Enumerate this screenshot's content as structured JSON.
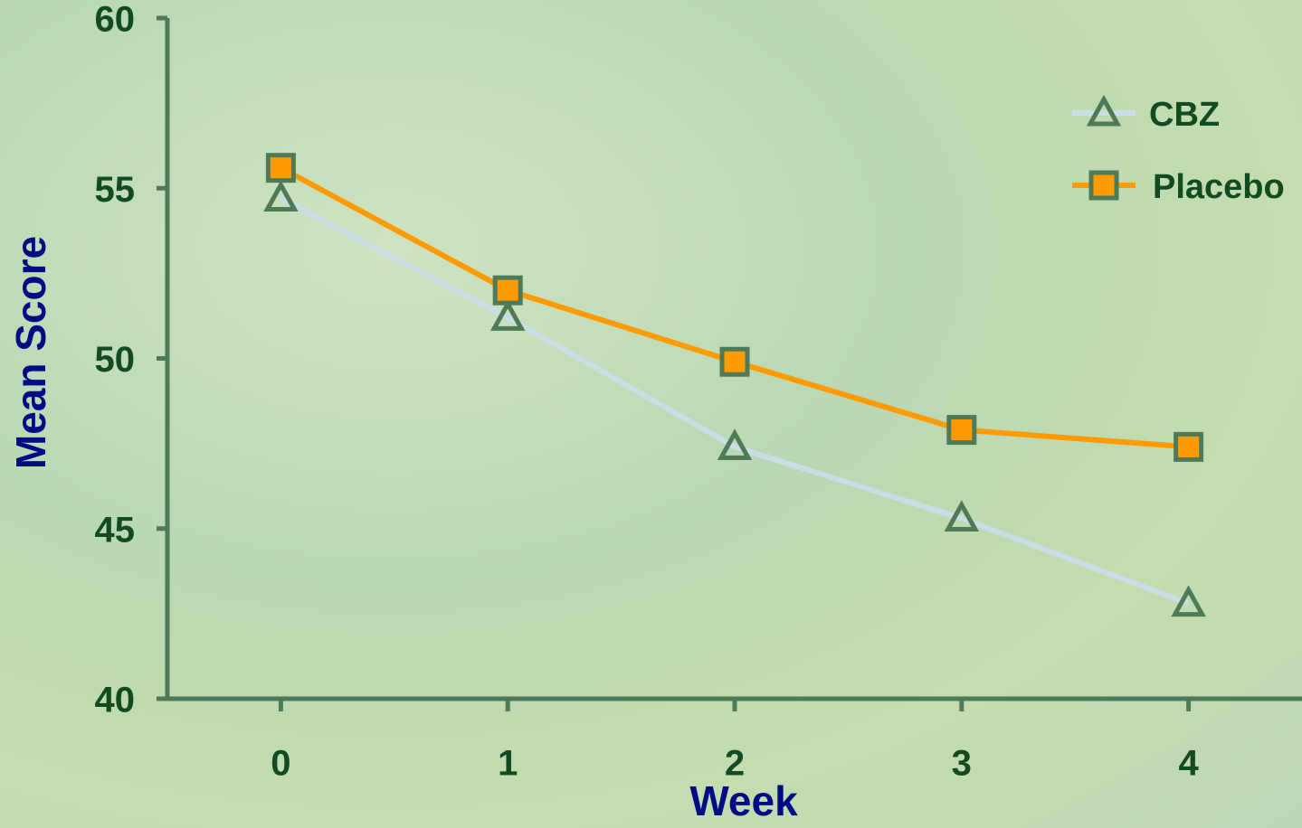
{
  "chart_data": {
    "type": "line",
    "xlabel": "Week",
    "ylabel": "Mean Score",
    "x": [
      0,
      1,
      2,
      3,
      4
    ],
    "xlim": [
      -0.5,
      4.5
    ],
    "xticks": [
      0,
      1,
      2,
      3,
      4
    ],
    "ylim": [
      40,
      60
    ],
    "yticks": [
      40,
      45,
      50,
      55,
      60
    ],
    "legend": "upper right",
    "series": [
      {
        "name": "CBZ",
        "color": "#c9dde6",
        "marker": "triangle",
        "values": [
          54.7,
          51.2,
          47.4,
          45.3,
          42.8
        ]
      },
      {
        "name": "Placebo",
        "color": "#ff9a00",
        "marker": "square",
        "values": [
          55.6,
          52.0,
          49.9,
          47.9,
          47.4
        ]
      }
    ]
  }
}
